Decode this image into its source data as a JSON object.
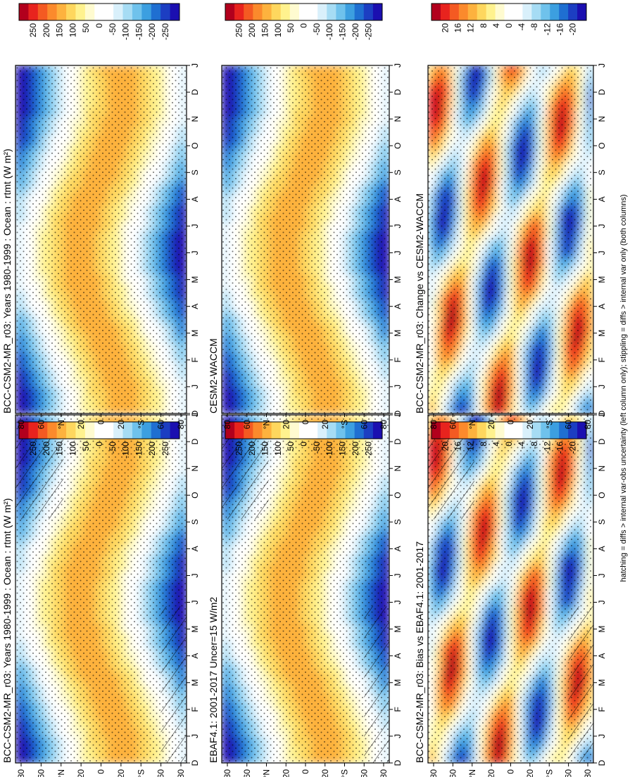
{
  "footer": "hatching = diffs > internal var-obs uncertainty (left column only); stippling = diffs > internal var only (both columns)",
  "chart_data": [
    {
      "type": "heatmap",
      "panel": "r1c1",
      "title": "BCC-CSM2-MR_r03: Years 1980-1999 : Ocean : rtmt (W m²)",
      "xlabel": "",
      "ylabel": "",
      "x_ticks": [
        "D",
        "J",
        "F",
        "M",
        "A",
        "M",
        "J",
        "J",
        "A",
        "S",
        "O",
        "N",
        "D",
        "J"
      ],
      "y_ticks": [
        "80",
        "60",
        "°N",
        "20",
        "0",
        "20",
        "°S",
        "60",
        "80"
      ],
      "colorbar_ticks": [
        "250",
        "200",
        "150",
        "100",
        "50",
        "0",
        "-50",
        "-100",
        "-150",
        "-200",
        "-250"
      ],
      "hatching": true,
      "stippling": true
    },
    {
      "type": "heatmap",
      "panel": "r1c2",
      "title": "BCC-CSM2-MR_r03: Years 1980-1999 : Ocean : rtmt (W m²)",
      "x_ticks": [
        "D",
        "J",
        "F",
        "M",
        "A",
        "M",
        "J",
        "J",
        "A",
        "S",
        "O",
        "N",
        "D",
        "J"
      ],
      "y_ticks": [
        "80",
        "60",
        "°N",
        "20",
        "0",
        "20",
        "°S",
        "60",
        "80"
      ],
      "colorbar_ticks": [
        "250",
        "200",
        "150",
        "100",
        "50",
        "0",
        "-50",
        "-100",
        "-150",
        "-200",
        "-250"
      ],
      "hatching": false,
      "stippling": true
    },
    {
      "type": "heatmap",
      "panel": "r2c1",
      "title": "EBAF4.1: 2001-2017 Uncer=15 W/m2",
      "x_ticks": [
        "D",
        "J",
        "F",
        "M",
        "A",
        "M",
        "J",
        "J",
        "A",
        "S",
        "O",
        "N",
        "D",
        "J"
      ],
      "y_ticks": [
        "80",
        "60",
        "°N",
        "20",
        "0",
        "20",
        "°S",
        "60",
        "80"
      ],
      "colorbar_ticks": [
        "250",
        "200",
        "150",
        "100",
        "50",
        "0",
        "-50",
        "-100",
        "-150",
        "-200",
        "-250"
      ],
      "hatching": true,
      "stippling": true
    },
    {
      "type": "heatmap",
      "panel": "r2c2",
      "title": "CESM2-WACCM",
      "x_ticks": [
        "D",
        "J",
        "F",
        "M",
        "A",
        "M",
        "J",
        "J",
        "A",
        "S",
        "O",
        "N",
        "D",
        "J"
      ],
      "y_ticks": [
        "80",
        "60",
        "°N",
        "20",
        "0",
        "20",
        "°S",
        "60",
        "80"
      ],
      "colorbar_ticks": [
        "250",
        "200",
        "150",
        "100",
        "50",
        "0",
        "-50",
        "-100",
        "-150",
        "-200",
        "-250"
      ],
      "hatching": false,
      "stippling": true
    },
    {
      "type": "heatmap",
      "panel": "r3c1",
      "title": "BCC-CSM2-MR_r03: Bias vs EBAF4.1: 2001-2017",
      "x_ticks": [
        "D",
        "J",
        "F",
        "M",
        "A",
        "M",
        "J",
        "J",
        "A",
        "S",
        "O",
        "N",
        "D",
        "J"
      ],
      "y_ticks": [
        "80",
        "60",
        "°N",
        "20",
        "0",
        "20",
        "°S",
        "60",
        "80"
      ],
      "colorbar_ticks": [
        "20",
        "16",
        "12",
        "8",
        "4",
        "0",
        "-4",
        "-8",
        "-12",
        "-16",
        "-20"
      ],
      "hatching": true,
      "stippling": true
    },
    {
      "type": "heatmap",
      "panel": "r3c2",
      "title": "BCC-CSM2-MR_r03: Change vs CESM2-WACCM",
      "x_ticks": [
        "D",
        "J",
        "F",
        "M",
        "A",
        "M",
        "J",
        "J",
        "A",
        "S",
        "O",
        "N",
        "D",
        "J"
      ],
      "y_ticks": [
        "80",
        "60",
        "°N",
        "20",
        "0",
        "20",
        "°S",
        "60",
        "80"
      ],
      "colorbar_ticks": [
        "20",
        "16",
        "12",
        "8",
        "4",
        "0",
        "-4",
        "-8",
        "-12",
        "-16",
        "-20"
      ],
      "hatching": false,
      "stippling": true
    }
  ],
  "colors": {
    "palette": [
      "#b2001d",
      "#e8231e",
      "#f45a22",
      "#fb8a2c",
      "#fdb23e",
      "#fed75e",
      "#fff28e",
      "#fffbd0",
      "#ffffff",
      "#ffffff",
      "#d9f0fb",
      "#a6dcf4",
      "#6fc2ec",
      "#3c9fe0",
      "#1f6fd1",
      "#1c3ec2",
      "#1b0fb0"
    ]
  }
}
